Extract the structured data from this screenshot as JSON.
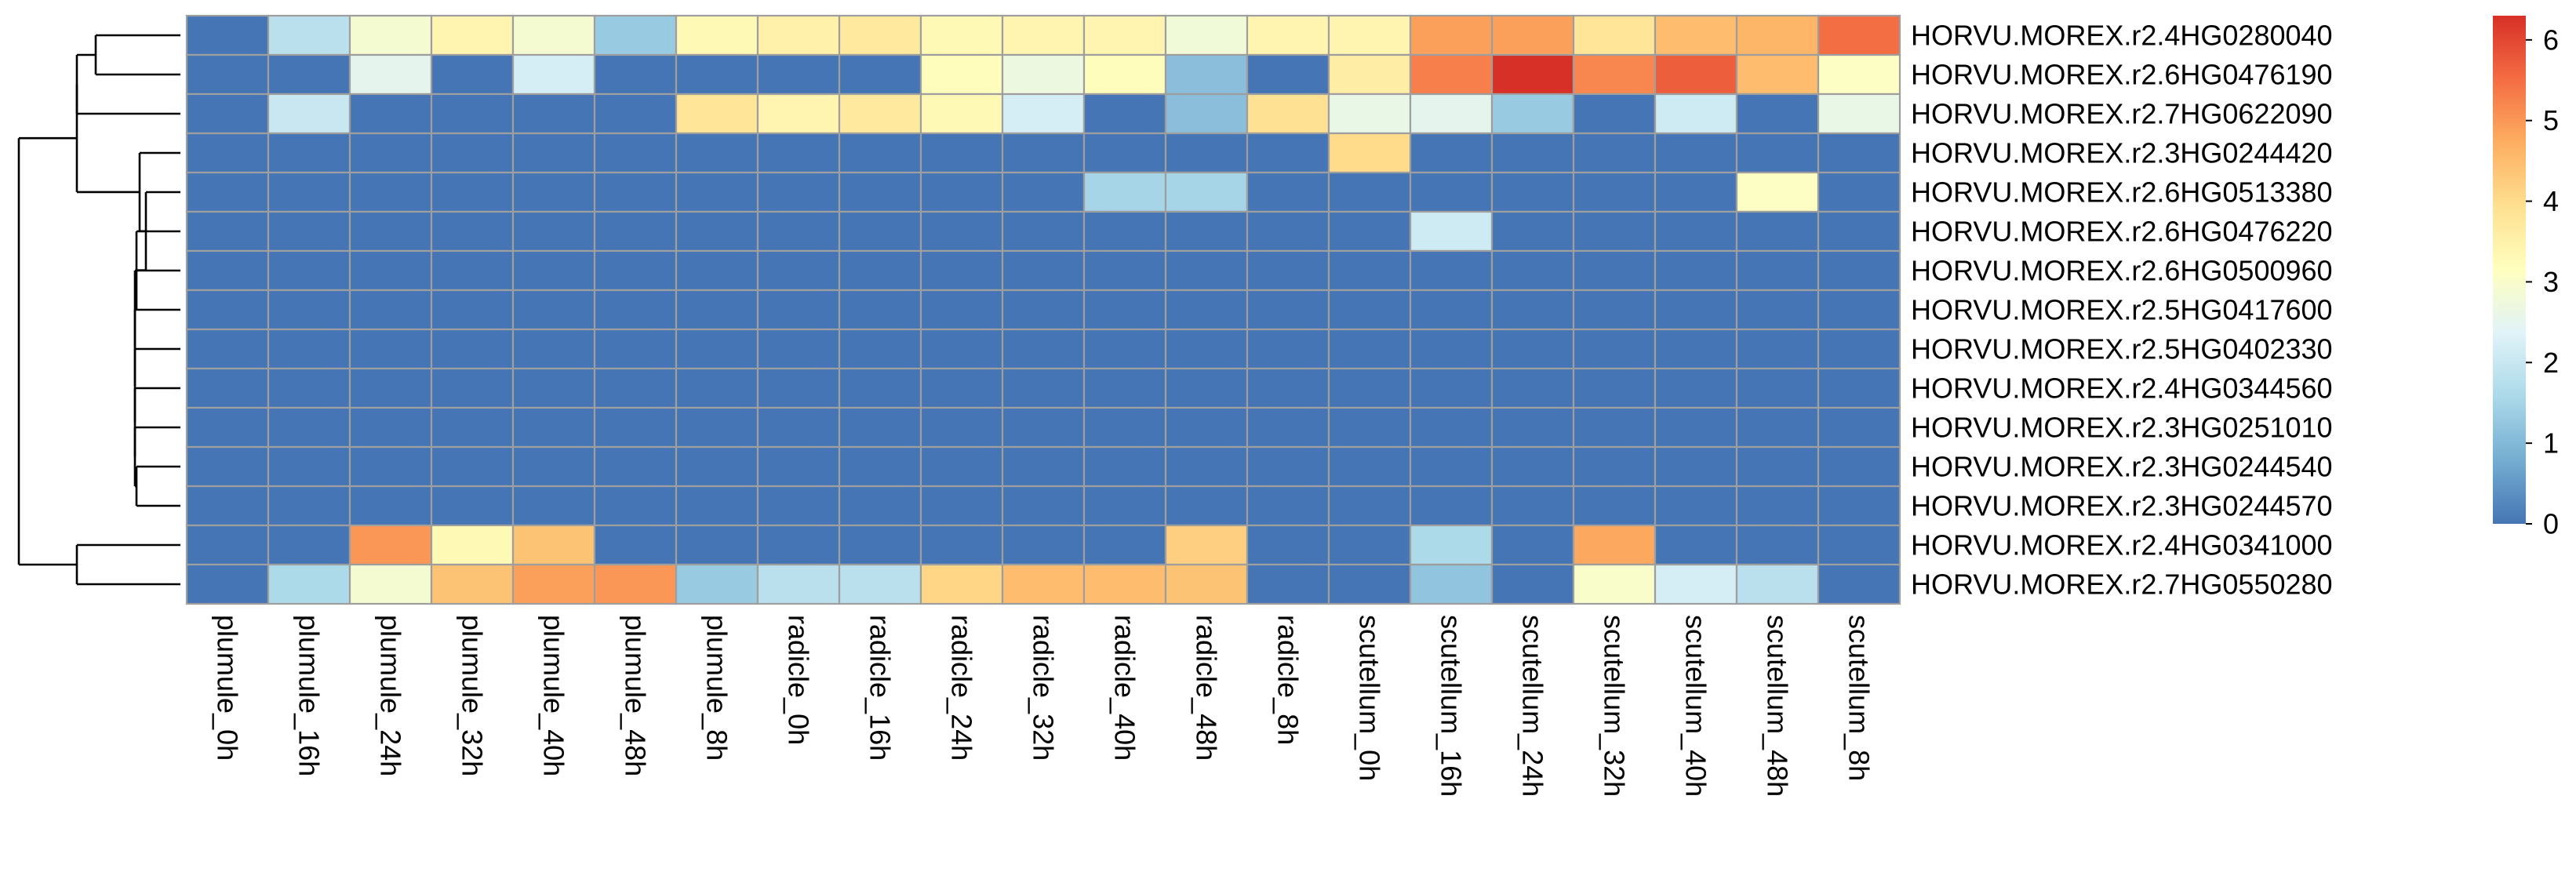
{
  "chart_data": {
    "type": "heatmap",
    "title": "",
    "xlabel": "",
    "ylabel": "",
    "rows": [
      "HORVU.MOREX.r2.4HG0280040",
      "HORVU.MOREX.r2.6HG0476190",
      "HORVU.MOREX.r2.7HG0622090",
      "HORVU.MOREX.r2.3HG0244420",
      "HORVU.MOREX.r2.6HG0513380",
      "HORVU.MOREX.r2.6HG0476220",
      "HORVU.MOREX.r2.6HG0500960",
      "HORVU.MOREX.r2.5HG0417600",
      "HORVU.MOREX.r2.5HG0402330",
      "HORVU.MOREX.r2.4HG0344560",
      "HORVU.MOREX.r2.3HG0251010",
      "HORVU.MOREX.r2.3HG0244540",
      "HORVU.MOREX.r2.3HG0244570",
      "HORVU.MOREX.r2.4HG0341000",
      "HORVU.MOREX.r2.7HG0550280"
    ],
    "columns": [
      "plumule_0h",
      "plumule_16h",
      "plumule_24h",
      "plumule_32h",
      "plumule_40h",
      "plumule_48h",
      "plumule_8h",
      "radicle_0h",
      "radicle_16h",
      "radicle_24h",
      "radicle_32h",
      "radicle_40h",
      "radicle_48h",
      "radicle_8h",
      "scutellum_0h",
      "scutellum_16h",
      "scutellum_24h",
      "scutellum_32h",
      "scutellum_40h",
      "scutellum_48h",
      "scutellum_8h"
    ],
    "values": [
      [
        0,
        1.8,
        2.9,
        3.4,
        2.9,
        1.3,
        3.3,
        3.5,
        3.7,
        3.3,
        3.4,
        3.4,
        2.8,
        3.4,
        3.4,
        4.9,
        4.9,
        3.8,
        4.5,
        4.6,
        5.5
      ],
      [
        0,
        0,
        2.5,
        0,
        2.2,
        0,
        0,
        0,
        0,
        3.2,
        2.7,
        3.2,
        1.1,
        0,
        3.6,
        5.3,
        6.3,
        5.2,
        5.7,
        4.5,
        3.1
      ],
      [
        0,
        2.0,
        0,
        0,
        0,
        0,
        3.8,
        3.4,
        3.7,
        3.3,
        2.2,
        0,
        1.1,
        3.9,
        2.6,
        2.5,
        1.3,
        0,
        2.1,
        0,
        2.6
      ],
      [
        0,
        0,
        0,
        0,
        0,
        0,
        0,
        0,
        0,
        0,
        0,
        0,
        0,
        0,
        4.0,
        0,
        0,
        0,
        0,
        0,
        0
      ],
      [
        0,
        0,
        0,
        0,
        0,
        0,
        0,
        0,
        0,
        0,
        0,
        1.5,
        1.5,
        0,
        0,
        0,
        0,
        0,
        0,
        3.1,
        0
      ],
      [
        0,
        0,
        0,
        0,
        0,
        0,
        0,
        0,
        0,
        0,
        0,
        0,
        0,
        0,
        0,
        2.1,
        0,
        0,
        0,
        0,
        0
      ],
      [
        0,
        0,
        0,
        0,
        0,
        0,
        0,
        0,
        0,
        0,
        0,
        0,
        0,
        0,
        0,
        0,
        0,
        0,
        0,
        0,
        0
      ],
      [
        0,
        0,
        0,
        0,
        0,
        0,
        0,
        0,
        0,
        0,
        0,
        0,
        0,
        0,
        0,
        0,
        0,
        0,
        0,
        0,
        0
      ],
      [
        0,
        0,
        0,
        0,
        0,
        0,
        0,
        0,
        0,
        0,
        0,
        0,
        0,
        0,
        0,
        0,
        0,
        0,
        0,
        0,
        0
      ],
      [
        0,
        0,
        0,
        0,
        0,
        0,
        0,
        0,
        0,
        0,
        0,
        0,
        0,
        0,
        0,
        0,
        0,
        0,
        0,
        0,
        0
      ],
      [
        0,
        0,
        0,
        0,
        0,
        0,
        0,
        0,
        0,
        0,
        0,
        0,
        0,
        0,
        0,
        0,
        0,
        0,
        0,
        0,
        0
      ],
      [
        0,
        0,
        0,
        0,
        0,
        0,
        0,
        0,
        0,
        0,
        0,
        0,
        0,
        0,
        0,
        0,
        0,
        0,
        0,
        0,
        0
      ],
      [
        0,
        0,
        0,
        0,
        0,
        0,
        0,
        0,
        0,
        0,
        0,
        0,
        0,
        0,
        0,
        0,
        0,
        0,
        0,
        0,
        0
      ],
      [
        0,
        0,
        5.0,
        3.3,
        4.4,
        0,
        0,
        0,
        0,
        0,
        0,
        0,
        4.2,
        0,
        0,
        1.6,
        0,
        4.8,
        0,
        0,
        0
      ],
      [
        0,
        1.6,
        2.9,
        4.4,
        4.9,
        5.0,
        1.3,
        1.8,
        1.8,
        4.1,
        4.5,
        4.5,
        4.4,
        0,
        0,
        1.2,
        0,
        3.0,
        2.2,
        1.8,
        0
      ]
    ],
    "color_scale": {
      "min": 0,
      "max": 6.3,
      "ticks": [
        0,
        1,
        2,
        3,
        4,
        5,
        6
      ],
      "stops": [
        "#4575B4",
        "#74ADD1",
        "#ABD9E9",
        "#E0F3F8",
        "#FFFFBF",
        "#FEE090",
        "#FDAE61",
        "#F46D43",
        "#D73027"
      ]
    },
    "cell_border_color": "#9E9E9E",
    "legend_position": "right",
    "row_dendrogram": true,
    "grid": true
  }
}
